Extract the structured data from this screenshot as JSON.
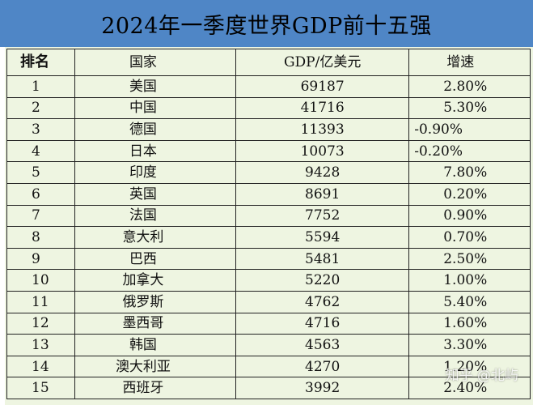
{
  "title": "2024年一季度世界GDP前十五强",
  "headers": {
    "rank": "排名",
    "country": "国家",
    "gdp": "GDP/亿美元",
    "growth": "增速"
  },
  "rows": [
    {
      "rank": "1",
      "country": "美国",
      "gdp": "69187",
      "growth": "2.80%"
    },
    {
      "rank": "2",
      "country": "中国",
      "gdp": "41716",
      "growth": "5.30%"
    },
    {
      "rank": "3",
      "country": "德国",
      "gdp": "11393",
      "growth": "-0.90%"
    },
    {
      "rank": "4",
      "country": "日本",
      "gdp": "10073",
      "growth": "-0.20%"
    },
    {
      "rank": "5",
      "country": "印度",
      "gdp": "9428",
      "growth": "7.80%"
    },
    {
      "rank": "6",
      "country": "英国",
      "gdp": "8691",
      "growth": "0.20%"
    },
    {
      "rank": "7",
      "country": "法国",
      "gdp": "7752",
      "growth": "0.90%"
    },
    {
      "rank": "8",
      "country": "意大利",
      "gdp": "5594",
      "growth": "0.70%"
    },
    {
      "rank": "9",
      "country": "巴西",
      "gdp": "5481",
      "growth": "2.50%"
    },
    {
      "rank": "10",
      "country": "加拿大",
      "gdp": "5220",
      "growth": "1.00%"
    },
    {
      "rank": "11",
      "country": "俄罗斯",
      "gdp": "4762",
      "growth": "5.40%"
    },
    {
      "rank": "12",
      "country": "墨西哥",
      "gdp": "4716",
      "growth": "1.60%"
    },
    {
      "rank": "13",
      "country": "韩国",
      "gdp": "4563",
      "growth": "3.30%"
    },
    {
      "rank": "14",
      "country": "澳大利亚",
      "gdp": "4270",
      "growth": "1.20%"
    },
    {
      "rank": "15",
      "country": "西班牙",
      "gdp": "3992",
      "growth": "2.40%"
    }
  ],
  "watermark": "知乎 @北屿",
  "colors": {
    "title_background": "#4f86c6",
    "table_background": "#eef5e1"
  }
}
